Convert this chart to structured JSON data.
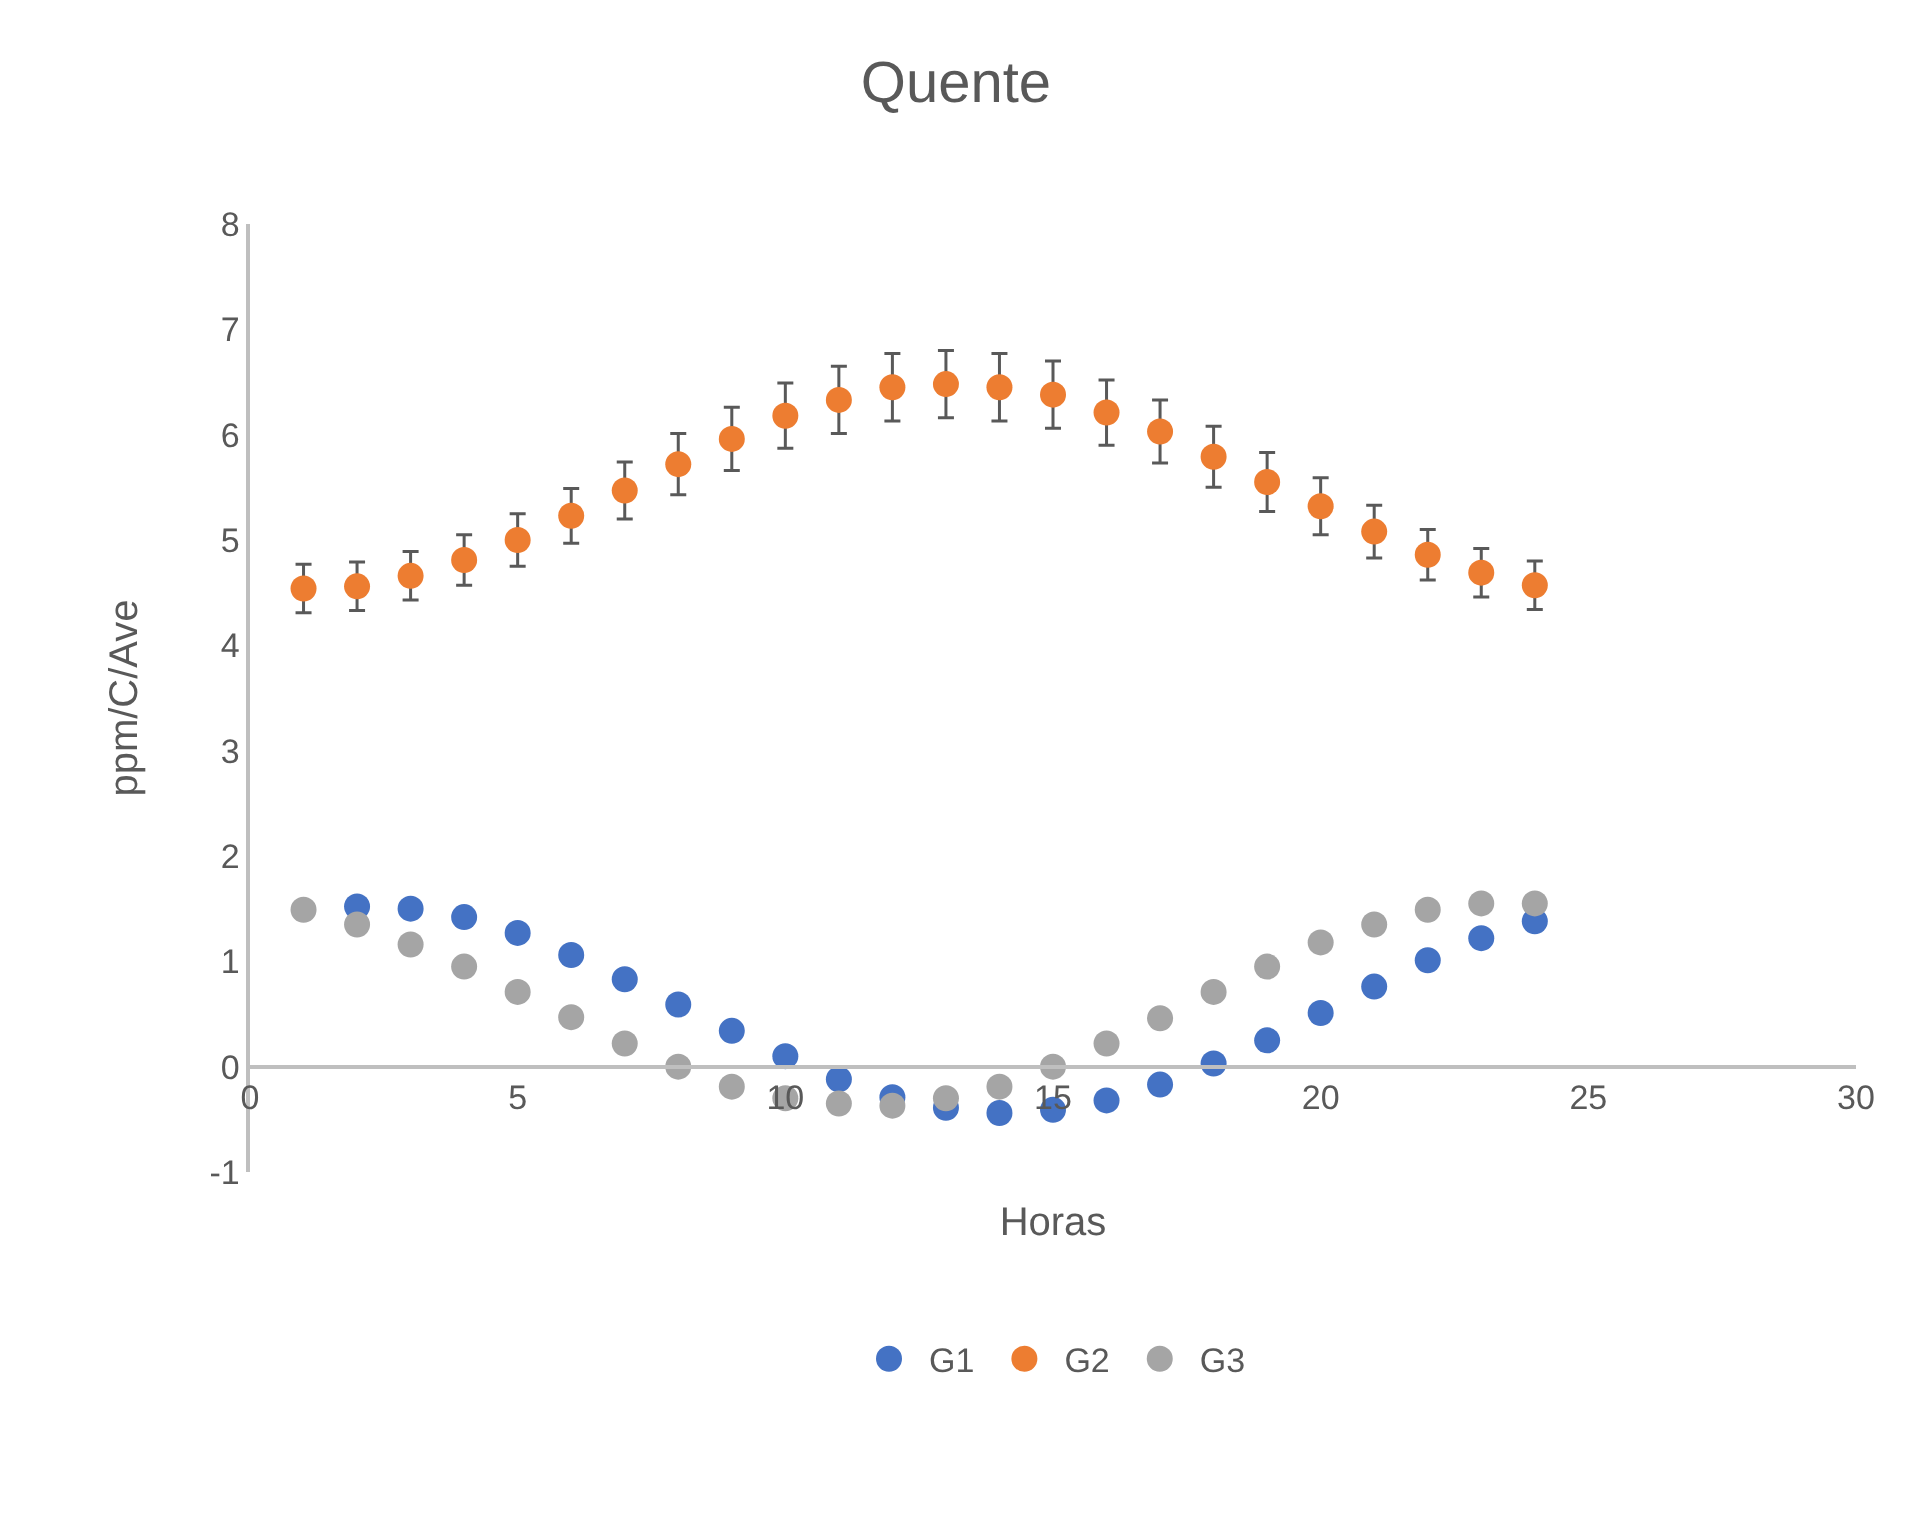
{
  "chart_data": {
    "type": "scatter",
    "title": "Quente",
    "xlabel": "Horas",
    "ylabel": "ppm/C/Ave",
    "x": [
      1,
      2,
      3,
      4,
      5,
      6,
      7,
      8,
      9,
      10,
      11,
      12,
      13,
      14,
      15,
      16,
      17,
      18,
      19,
      20,
      21,
      22,
      23,
      24
    ],
    "series": [
      {
        "name": "G1",
        "color": "#4472c4",
        "values": [
          null,
          1.52,
          1.5,
          1.42,
          1.27,
          1.06,
          0.83,
          0.59,
          0.34,
          0.1,
          -0.12,
          -0.29,
          -0.39,
          -0.44,
          -0.41,
          -0.32,
          -0.17,
          0.03,
          0.25,
          0.51,
          0.76,
          1.01,
          1.22,
          1.38
        ]
      },
      {
        "name": "G2",
        "color": "#ed7d31",
        "values": [
          4.54,
          4.56,
          4.66,
          4.81,
          5.0,
          5.23,
          5.47,
          5.72,
          5.96,
          6.18,
          6.33,
          6.45,
          6.48,
          6.45,
          6.38,
          6.21,
          6.03,
          5.79,
          5.55,
          5.32,
          5.08,
          4.86,
          4.69,
          4.57
        ],
        "errors": [
          0.23,
          0.23,
          0.23,
          0.24,
          0.25,
          0.26,
          0.27,
          0.29,
          0.3,
          0.31,
          0.32,
          0.32,
          0.32,
          0.32,
          0.32,
          0.31,
          0.3,
          0.29,
          0.28,
          0.27,
          0.25,
          0.24,
          0.23,
          0.23
        ]
      },
      {
        "name": "G3",
        "color": "#a5a5a5",
        "values": [
          1.49,
          1.35,
          1.16,
          0.95,
          0.71,
          0.47,
          0.22,
          0.0,
          -0.19,
          -0.3,
          -0.35,
          -0.37,
          -0.3,
          -0.19,
          0.0,
          0.22,
          0.46,
          0.71,
          0.95,
          1.18,
          1.35,
          1.49,
          1.55,
          1.55
        ]
      }
    ],
    "xlim": [
      0,
      30
    ],
    "xticks": [
      0,
      5,
      10,
      15,
      20,
      25,
      30
    ],
    "ylim": [
      -1,
      8
    ],
    "yticks": [
      -1,
      0,
      1,
      2,
      3,
      4,
      5,
      6,
      7,
      8
    ],
    "grid": false,
    "legend": "bottom",
    "marker": "circle"
  }
}
